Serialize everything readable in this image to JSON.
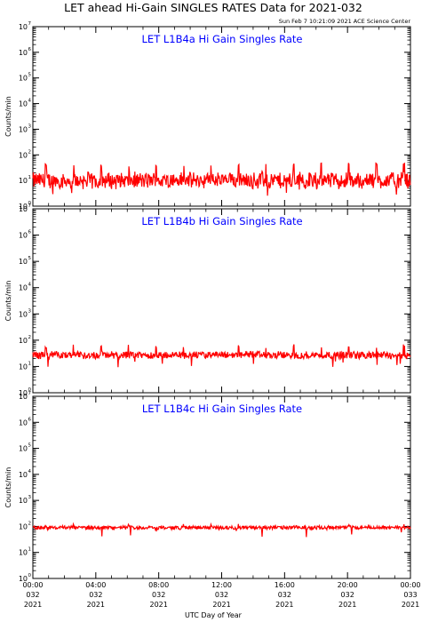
{
  "header": {
    "title": "LET ahead Hi-Gain SINGLES RATES Data for 2021-032",
    "timestamp": "Sun Feb  7 10:21:09 2021 ACE Science Center"
  },
  "colors": {
    "line": "#ff0000",
    "panel_title": "#0000ff",
    "axes": "#000000"
  },
  "chart_data": [
    {
      "type": "line",
      "title": "LET L1B4a Hi Gain Singles Rate",
      "ylabel": "Counts/min",
      "yscale": "log",
      "ylim": [
        1,
        10000000
      ],
      "xlim": [
        0,
        24
      ],
      "baseline": 10,
      "noise_range": [
        4,
        22
      ],
      "spike_interval_hours": 1.75,
      "spike_peak": 50,
      "series": [
        {
          "values_summary": "fluctuates around 10 counts/min with periodic spikes to ~50"
        }
      ]
    },
    {
      "type": "line",
      "title": "LET L1B4b Hi Gain Singles Rate",
      "ylabel": "Counts/min",
      "yscale": "log",
      "ylim": [
        1,
        10000000
      ],
      "xlim": [
        0,
        24
      ],
      "baseline": 27,
      "noise_range": [
        18,
        38
      ],
      "spike_interval_hours": 1.75,
      "spike_peak": 70,
      "series": [
        {
          "values_summary": "fluctuates around 27 counts/min with periodic spikes to ~70"
        }
      ]
    },
    {
      "type": "line",
      "title": "LET L1B4c Hi Gain Singles Rate",
      "ylabel": "Counts/min",
      "yscale": "log",
      "ylim": [
        1,
        10000000
      ],
      "xlim": [
        0,
        24
      ],
      "baseline": 90,
      "noise_range": [
        75,
        110
      ],
      "spike_interval_hours": 1.75,
      "spike_peak": 125,
      "series": [
        {
          "values_summary": "steady near 90 counts/min"
        }
      ]
    }
  ],
  "ytick_labels": [
    {
      "base": "10",
      "exp": "0"
    },
    {
      "base": "10",
      "exp": "1"
    },
    {
      "base": "10",
      "exp": "2"
    },
    {
      "base": "10",
      "exp": "3"
    },
    {
      "base": "10",
      "exp": "4"
    },
    {
      "base": "10",
      "exp": "5"
    },
    {
      "base": "10",
      "exp": "6"
    },
    {
      "base": "10",
      "exp": "7"
    }
  ],
  "xticks": [
    {
      "hour": 0,
      "time": "00:00",
      "doy": "032",
      "year": "2021"
    },
    {
      "hour": 4,
      "time": "04:00",
      "doy": "032",
      "year": "2021"
    },
    {
      "hour": 8,
      "time": "08:00",
      "doy": "032",
      "year": "2021"
    },
    {
      "hour": 12,
      "time": "12:00",
      "doy": "032",
      "year": "2021"
    },
    {
      "hour": 16,
      "time": "16:00",
      "doy": "032",
      "year": "2021"
    },
    {
      "hour": 20,
      "time": "20:00",
      "doy": "032",
      "year": "2021"
    },
    {
      "hour": 24,
      "time": "00:00",
      "doy": "033",
      "year": "2021"
    }
  ],
  "xlabel": "UTC Day of Year"
}
